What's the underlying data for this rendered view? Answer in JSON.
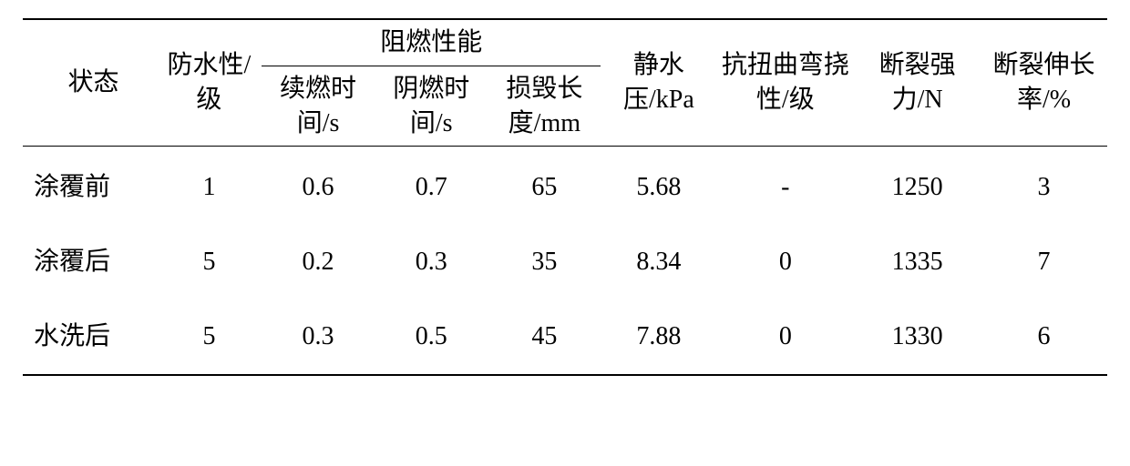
{
  "table": {
    "type": "table",
    "background_color": "#ffffff",
    "border_color": "#000000",
    "text_color": "#000000",
    "font_size_pt": 21,
    "font_family": "SimSun",
    "header": {
      "state": "状态",
      "waterproof": "防水性/级",
      "flame_group": "阻燃性能",
      "flame_afterflame": "续燃时间/s",
      "flame_afterglow": "阴燃时间/s",
      "flame_damage_len": "损毁长度/mm",
      "hydrostatic": "静水压/kPa",
      "torsion_flex": "抗扭曲弯挠性/级",
      "break_strength": "断裂强力/N",
      "elongation": "断裂伸长率/%"
    },
    "rows": [
      {
        "state": "涂覆前",
        "waterproof": "1",
        "afterflame": "0.6",
        "afterglow": "0.7",
        "damage_len": "65",
        "hydrostatic": "5.68",
        "torsion_flex": "-",
        "break_strength": "1250",
        "elongation": "3"
      },
      {
        "state": "涂覆后",
        "waterproof": "5",
        "afterflame": "0.2",
        "afterglow": "0.3",
        "damage_len": "35",
        "hydrostatic": "8.34",
        "torsion_flex": "0",
        "break_strength": "1335",
        "elongation": "7"
      },
      {
        "state": "水洗后",
        "waterproof": "5",
        "afterflame": "0.3",
        "afterglow": "0.5",
        "damage_len": "45",
        "hydrostatic": "7.88",
        "torsion_flex": "0",
        "break_strength": "1330",
        "elongation": "6"
      }
    ],
    "column_alignment": [
      "left",
      "center",
      "center",
      "center",
      "center",
      "center",
      "center",
      "center",
      "center"
    ]
  }
}
